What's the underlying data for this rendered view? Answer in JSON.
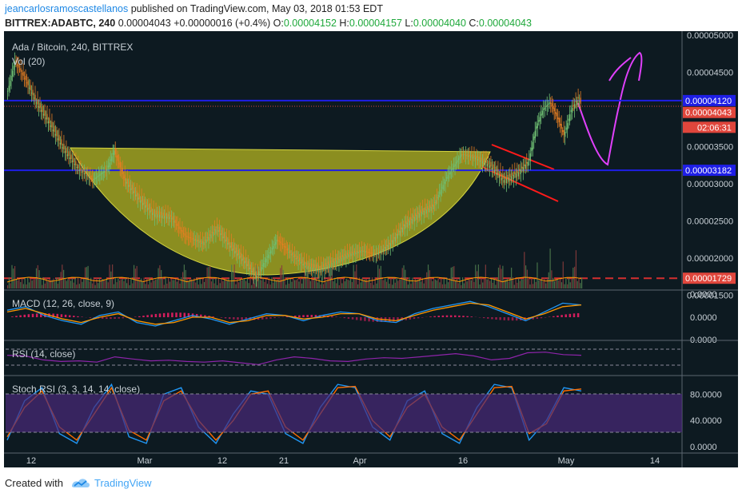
{
  "header": {
    "author": "jeancarlosramoscastellanos",
    "published": "published on TradingView.com, May 03, 2018 01:53 EDT",
    "symbol_line": "BITTREX:ADABTC, 240",
    "last": "0.00004043",
    "change": "+0.00000016 (+0.4%)",
    "o_label": "O:",
    "o_value": "0.00004152",
    "h_label": "H:",
    "h_value": "0.00004157",
    "l_label": "L:",
    "l_value": "0.00004040",
    "c_label": "C:",
    "c_value": "0.00004043"
  },
  "chart_data": [
    {
      "type": "candlestick",
      "title": "Ada / Bitcoin, 240, BITTREX",
      "indicator_label": "Vol (20)",
      "y_ticks": [
        "0.00005000",
        "0.00004500",
        "0.00003500",
        "0.00003000",
        "0.00002500",
        "0.00002000",
        "0.00001500"
      ],
      "price_labels": [
        {
          "value": "0.00004120",
          "color": "#1e1ee6"
        },
        {
          "value": "0.00004043",
          "color": "#e0463c"
        },
        {
          "value": "02:06:31",
          "color": "#e0463c"
        },
        {
          "value": "0.00003182",
          "color": "#1e1ee6"
        },
        {
          "value": "0.00001729",
          "color": "#e0463c"
        }
      ],
      "x_ticks": [
        "12",
        "Mar",
        "12",
        "21",
        "Apr",
        "16",
        "May",
        "14"
      ],
      "close_path": [
        [
          0,
          4.25
        ],
        [
          2,
          4.65
        ],
        [
          5,
          4.4
        ],
        [
          8,
          4.1
        ],
        [
          12,
          3.8
        ],
        [
          16,
          3.45
        ],
        [
          20,
          3.2
        ],
        [
          24,
          3.05
        ],
        [
          28,
          3.2
        ],
        [
          30,
          3.45
        ],
        [
          33,
          3.05
        ],
        [
          37,
          2.8
        ],
        [
          41,
          2.6
        ],
        [
          46,
          2.55
        ],
        [
          50,
          2.3
        ],
        [
          55,
          2.2
        ],
        [
          59,
          2.4
        ],
        [
          63,
          2.15
        ],
        [
          67,
          1.95
        ],
        [
          70,
          1.75
        ],
        [
          73,
          2.0
        ],
        [
          76,
          2.25
        ],
        [
          80,
          2.05
        ],
        [
          84,
          1.9
        ],
        [
          88,
          1.85
        ],
        [
          92,
          1.95
        ],
        [
          96,
          2.05
        ],
        [
          100,
          2.1
        ],
        [
          104,
          2.05
        ],
        [
          108,
          2.2
        ],
        [
          112,
          2.45
        ],
        [
          116,
          2.6
        ],
        [
          120,
          2.7
        ],
        [
          124,
          3.1
        ],
        [
          128,
          3.4
        ],
        [
          132,
          3.35
        ],
        [
          136,
          3.25
        ],
        [
          140,
          3.05
        ],
        [
          144,
          3.15
        ],
        [
          147,
          3.3
        ],
        [
          149,
          3.75
        ],
        [
          151,
          4.0
        ],
        [
          153,
          4.1
        ],
        [
          155,
          3.9
        ],
        [
          157,
          3.65
        ],
        [
          159,
          4.0
        ],
        [
          161,
          4.15
        ],
        [
          162,
          4.04
        ]
      ],
      "annotations": {
        "blue_levels": [
          "0.00004120",
          "0.00003182"
        ],
        "red_dashed_level": "0.00001729",
        "shapes": [
          "cup arc (yellow)",
          "falling channel (red)",
          "projected path (magenta)"
        ]
      }
    },
    {
      "type": "line",
      "title": "MACD (12, 26, close, 9)",
      "y_ticks": [
        "0.0000",
        "0.0000",
        "0.0000"
      ],
      "series": [
        {
          "color": "#2196f3",
          "values": [
            0.4,
            0.6,
            0.1,
            -0.2,
            -0.4,
            0.1,
            0.3,
            -0.3,
            -0.5,
            -0.2,
            0.1,
            -0.1,
            -0.4,
            -0.1,
            0.2,
            0.1,
            -0.2,
            0.1,
            0.3,
            0.2,
            -0.2,
            -0.3,
            0.2,
            0.5,
            0.7,
            0.9,
            0.6,
            0.2,
            -0.2,
            0.3,
            0.8,
            0.7
          ]
        },
        {
          "color": "#ff9800",
          "values": [
            0.3,
            0.5,
            0.2,
            -0.1,
            -0.3,
            0.0,
            0.2,
            -0.2,
            -0.4,
            -0.3,
            0.0,
            0.0,
            -0.3,
            -0.2,
            0.1,
            0.1,
            -0.1,
            0.0,
            0.2,
            0.2,
            -0.1,
            -0.2,
            0.1,
            0.4,
            0.6,
            0.8,
            0.7,
            0.3,
            -0.1,
            0.2,
            0.6,
            0.7
          ]
        }
      ]
    },
    {
      "type": "line",
      "title": "RSI (14, close)",
      "series": [
        {
          "color": "#8e24aa",
          "values": [
            60,
            58,
            45,
            40,
            42,
            38,
            55,
            48,
            42,
            44,
            40,
            38,
            42,
            36,
            30,
            45,
            55,
            50,
            42,
            40,
            48,
            52,
            50,
            55,
            60,
            65,
            58,
            45,
            50,
            68,
            70,
            62,
            60
          ]
        }
      ]
    },
    {
      "type": "line",
      "title": "Stoch RSI (3, 3, 14, 14, close)",
      "y_ticks": [
        "80.0000",
        "40.0000",
        "0.0000"
      ],
      "series": [
        {
          "color": "#2196f3",
          "values": [
            10,
            70,
            90,
            20,
            5,
            60,
            95,
            15,
            5,
            80,
            90,
            30,
            5,
            50,
            85,
            80,
            20,
            5,
            60,
            95,
            90,
            30,
            10,
            70,
            85,
            20,
            5,
            60,
            95,
            90,
            10,
            40,
            90,
            85
          ]
        },
        {
          "color": "#ff6d00",
          "values": [
            15,
            60,
            85,
            30,
            10,
            50,
            90,
            25,
            10,
            70,
            85,
            40,
            10,
            40,
            80,
            85,
            30,
            10,
            50,
            90,
            92,
            40,
            15,
            60,
            80,
            30,
            10,
            50,
            90,
            92,
            20,
            35,
            85,
            88
          ]
        }
      ]
    }
  ],
  "footer": {
    "created_with": "Created with",
    "brand": "TradingView"
  }
}
